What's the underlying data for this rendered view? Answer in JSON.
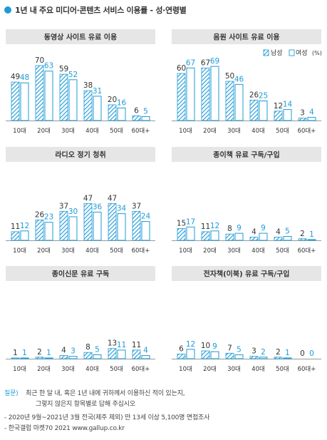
{
  "title": "1년 내 주요 미디어·콘텐츠 서비스 이용률 - 성·연령별",
  "legend": {
    "male": "남성",
    "female": "여성",
    "unit": "(%)"
  },
  "colors": {
    "accent": "#1e9bd7",
    "box_bg": "#e6e6e6"
  },
  "categories": [
    "10대",
    "20대",
    "30대",
    "40대",
    "50대",
    "60대+"
  ],
  "chart_data": [
    {
      "type": "bar",
      "title": "동영상 사이트 유료 이용",
      "categories": [
        "10대",
        "20대",
        "30대",
        "40대",
        "50대",
        "60대+"
      ],
      "series": [
        {
          "name": "남성",
          "values": [
            49,
            70,
            59,
            38,
            20,
            6
          ]
        },
        {
          "name": "여성",
          "values": [
            48,
            63,
            52,
            31,
            16,
            5
          ]
        }
      ]
    },
    {
      "type": "bar",
      "title": "음원 사이트 유료 이용",
      "categories": [
        "10대",
        "20대",
        "30대",
        "40대",
        "50대",
        "60대+"
      ],
      "series": [
        {
          "name": "남성",
          "values": [
            60,
            67,
            50,
            26,
            12,
            3
          ]
        },
        {
          "name": "여성",
          "values": [
            67,
            69,
            46,
            25,
            14,
            4
          ]
        }
      ]
    },
    {
      "type": "bar",
      "title": "라디오 정기 청취",
      "categories": [
        "10대",
        "20대",
        "30대",
        "40대",
        "50대",
        "60대+"
      ],
      "series": [
        {
          "name": "남성",
          "values": [
            11,
            26,
            37,
            47,
            47,
            37
          ]
        },
        {
          "name": "여성",
          "values": [
            12,
            23,
            30,
            36,
            34,
            24
          ]
        }
      ]
    },
    {
      "type": "bar",
      "title": "종이책 유료 구독/구입",
      "categories": [
        "10대",
        "20대",
        "30대",
        "40대",
        "50대",
        "60대+"
      ],
      "series": [
        {
          "name": "남성",
          "values": [
            15,
            11,
            8,
            4,
            4,
            2
          ]
        },
        {
          "name": "여성",
          "values": [
            17,
            12,
            9,
            9,
            5,
            1
          ]
        }
      ]
    },
    {
      "type": "bar",
      "title": "종이신문 유료 구독",
      "categories": [
        "10대",
        "20대",
        "30대",
        "40대",
        "50대",
        "60대+"
      ],
      "series": [
        {
          "name": "남성",
          "values": [
            1,
            2,
            4,
            8,
            13,
            11
          ]
        },
        {
          "name": "여성",
          "values": [
            1,
            1,
            3,
            5,
            11,
            4
          ]
        }
      ]
    },
    {
      "type": "bar",
      "title": "전자책(이북) 유료 구독/구입",
      "categories": [
        "10대",
        "20대",
        "30대",
        "40대",
        "50대",
        "60대+"
      ],
      "series": [
        {
          "name": "남성",
          "values": [
            6,
            10,
            7,
            3,
            2,
            0
          ]
        },
        {
          "name": "여성",
          "values": [
            12,
            9,
            5,
            2,
            1,
            0
          ]
        }
      ]
    }
  ],
  "notes": {
    "question_label": "질문)",
    "question_line1": "최근 한 달 내, 혹은 1년 내에 귀하께서 이용하신 적이 있는지,",
    "question_line2": "그렇지 않은지 항목별로 답해 주십시오",
    "survey": "- 2020년 9월~2021년 3월 전국(제주 제외) 만 13세 이상 5,100명 면접조사",
    "source": "- 한국갤럽 마켓70 2021 www.gallup.co.kr"
  }
}
